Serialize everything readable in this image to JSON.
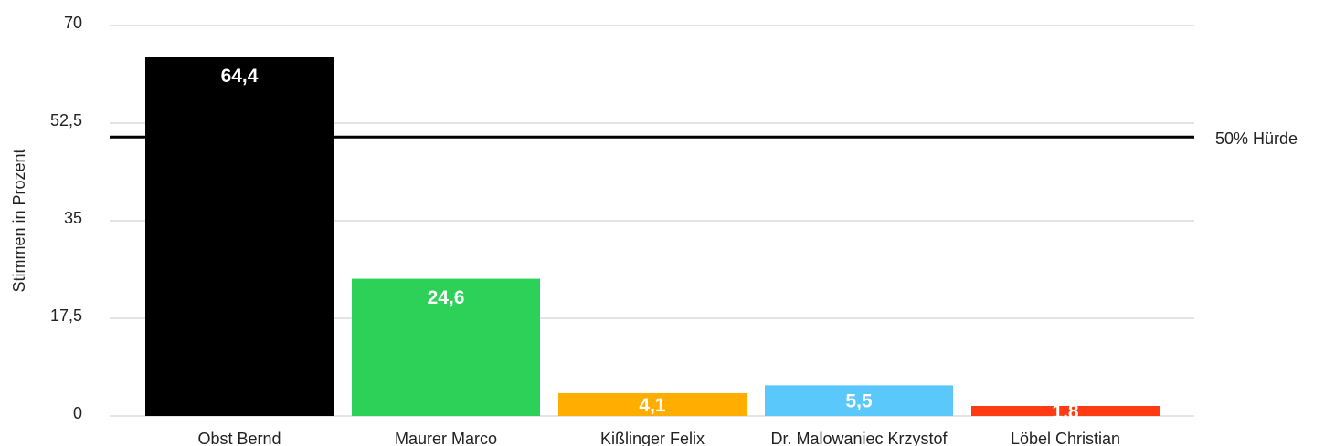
{
  "chart_data": {
    "type": "bar",
    "y_label": "Stimmen in Prozent",
    "categories": [
      "Obst Bernd",
      "Maurer Marco",
      "Kißlinger Felix",
      "Dr. Malowaniec Krzystof",
      "Löbel Christian"
    ],
    "values": [
      64.4,
      24.6,
      4.1,
      5.5,
      1.8
    ],
    "value_labels": [
      "64,4",
      "24,6",
      "4,1",
      "5,5",
      "1,8"
    ],
    "colors": [
      "#000000",
      "#2ed158",
      "#ffae00",
      "#5ac8fa",
      "#ff3b14"
    ],
    "ylim": [
      0,
      70
    ],
    "yticks": [
      0,
      {
        "value": 17.5,
        "label": "17,5"
      },
      35,
      {
        "value": 52.5,
        "label": "52,5"
      },
      70
    ],
    "grid": true,
    "reference_line": {
      "value": 50,
      "label": "50% Hürde"
    }
  }
}
